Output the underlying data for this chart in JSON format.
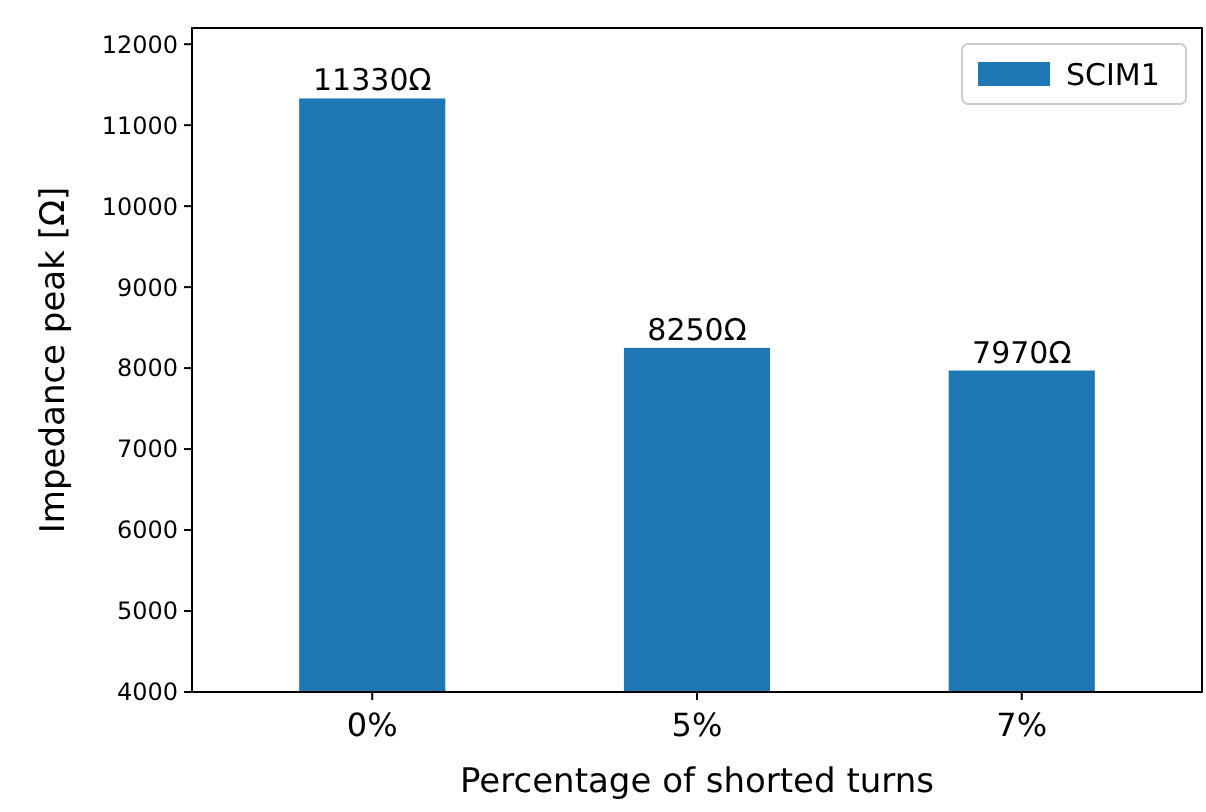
{
  "chart_data": {
    "type": "bar",
    "xlabel": "Percentage of shorted turns",
    "ylabel": "Impedance peak [Ω]",
    "categories": [
      "0%",
      "5%",
      "7%"
    ],
    "series": [
      {
        "name": "SCIM1",
        "color": "#1f77b4",
        "values": [
          11330,
          8250,
          7970
        ],
        "value_labels": [
          "11330Ω",
          "8250Ω",
          "7970Ω"
        ]
      }
    ],
    "ylim": [
      4000,
      12200
    ],
    "yticks": [
      4000,
      5000,
      6000,
      7000,
      8000,
      9000,
      10000,
      11000,
      12000
    ],
    "legend": "top right"
  }
}
